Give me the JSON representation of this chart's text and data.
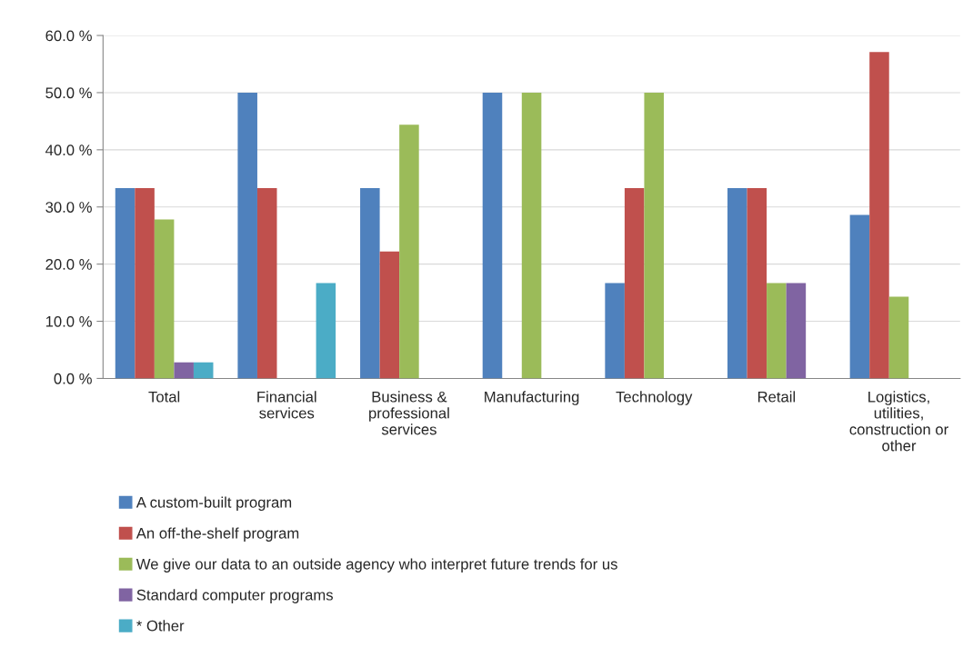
{
  "chart_data": {
    "type": "bar",
    "categories": [
      "Total",
      "Financial\nservices",
      "Business &\nprofessional\nservices",
      "Manufacturing",
      "Technology",
      "Retail",
      "Logistics,\nutilities,\nconstruction or\nother"
    ],
    "series": [
      {
        "name": "A custom-built program",
        "color": "#4f81bd",
        "values": [
          33.3,
          50.0,
          33.3,
          50.0,
          16.7,
          33.3,
          28.6
        ]
      },
      {
        "name": "An off-the-shelf program",
        "color": "#c0504d",
        "values": [
          33.3,
          33.3,
          22.2,
          0,
          33.3,
          33.3,
          57.1
        ]
      },
      {
        "name": "We give our data to an outside agency who interpret future trends for us",
        "color": "#9bbb59",
        "values": [
          27.8,
          0,
          44.4,
          50.0,
          50.0,
          16.7,
          14.3
        ]
      },
      {
        "name": "Standard computer programs",
        "color": "#8064a2",
        "values": [
          2.8,
          0,
          0,
          0,
          0,
          16.7,
          0
        ]
      },
      {
        "name": "* Other",
        "color": "#4bacc6",
        "values": [
          2.8,
          16.7,
          0,
          0,
          0,
          0,
          0
        ]
      }
    ],
    "ylim": [
      0,
      60
    ],
    "yticks": [
      {
        "value": 0,
        "label": "0.0 %"
      },
      {
        "value": 10,
        "label": "10.0 %"
      },
      {
        "value": 20,
        "label": "20.0 %"
      },
      {
        "value": 30,
        "label": "30.0 %"
      },
      {
        "value": 40,
        "label": "40.0 %"
      },
      {
        "value": 50,
        "label": "50.0 %"
      },
      {
        "value": 60,
        "label": "60.0 %"
      }
    ],
    "grid": "y",
    "legend": "bottom"
  }
}
